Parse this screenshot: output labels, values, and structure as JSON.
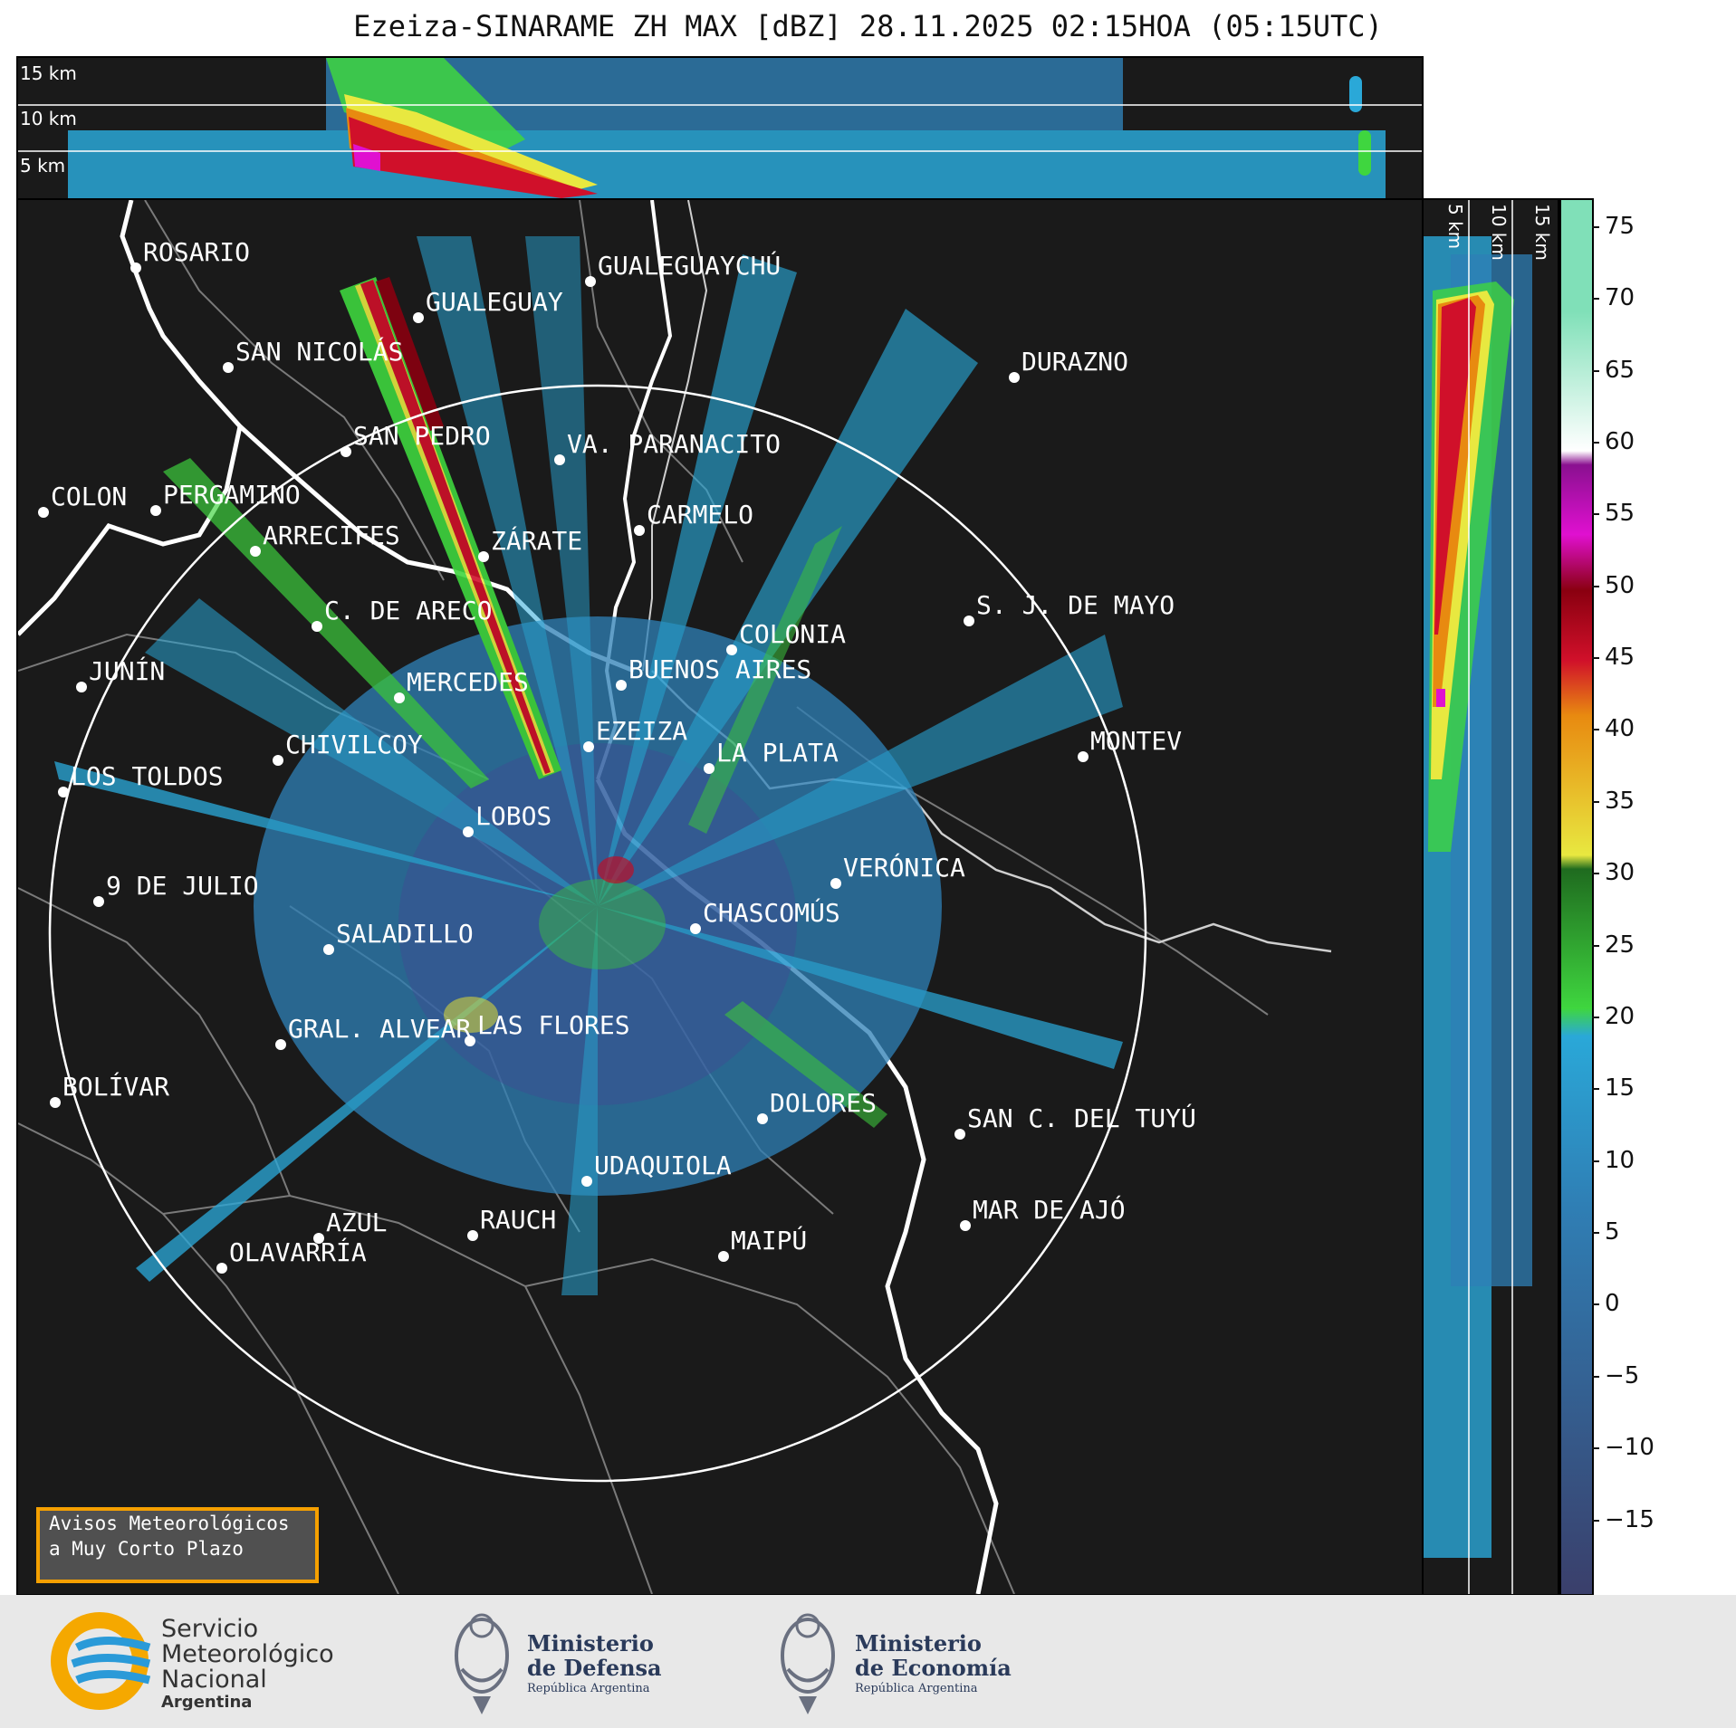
{
  "title": "Ezeiza-SINARAME ZH MAX [dBZ] 28.11.2025 02:15HOA (05:15UTC)",
  "top_panel": {
    "height_labels": [
      "15 km",
      "10 km",
      "5 km"
    ]
  },
  "side_panel": {
    "height_labels": [
      "5 km",
      "10 km",
      "15 km"
    ]
  },
  "colorbar": {
    "ticks": [
      "75",
      "70",
      "65",
      "60",
      "55",
      "50",
      "45",
      "40",
      "35",
      "30",
      "25",
      "20",
      "15",
      "10",
      "5",
      "0",
      "−5",
      "−10",
      "−15"
    ],
    "range_dbz": [
      -20,
      77
    ],
    "colors": {
      "low": "#3a3f6b",
      "blue": "#2f7fb5",
      "light_blue": "#2aa8d8",
      "green": "#3fd63f",
      "dark_green": "#1f6b1f",
      "yellow": "#e8e840",
      "orange": "#e88a10",
      "red": "#d0102a",
      "dark_red": "#8a0010",
      "magenta": "#e010d0",
      "purple": "#8a1090",
      "white": "#ffffff",
      "mint": "#80e0b8"
    }
  },
  "places": [
    {
      "name": "ROSARIO"
    },
    {
      "name": "GUALEGUAYCHÚ"
    },
    {
      "name": "GUALEGUAY"
    },
    {
      "name": "SAN NICOLÁS"
    },
    {
      "name": "DURAZNO"
    },
    {
      "name": "SAN PEDRO"
    },
    {
      "name": "VA. PARANACITO"
    },
    {
      "name": "COLON"
    },
    {
      "name": "PERGAMINO"
    },
    {
      "name": "CARMELO"
    },
    {
      "name": "ARRECIFES"
    },
    {
      "name": "ZÁRATE"
    },
    {
      "name": "S. J. DE MAYO"
    },
    {
      "name": "C. DE ARECO"
    },
    {
      "name": "COLONIA"
    },
    {
      "name": "JUNÍN"
    },
    {
      "name": "BUENOS AIRES"
    },
    {
      "name": "MERCEDES"
    },
    {
      "name": "MONTEV"
    },
    {
      "name": "EZEIZA"
    },
    {
      "name": "CHIVILCOY"
    },
    {
      "name": "LA PLATA"
    },
    {
      "name": "LOS TOLDOS"
    },
    {
      "name": "LOBOS"
    },
    {
      "name": "VERÓNICA"
    },
    {
      "name": "9 DE JULIO"
    },
    {
      "name": "CHASCOMÚS"
    },
    {
      "name": "SALADILLO"
    },
    {
      "name": "GRAL. ALVEAR"
    },
    {
      "name": "LAS FLORES"
    },
    {
      "name": "BOLÍVAR"
    },
    {
      "name": "DOLORES"
    },
    {
      "name": "SAN C. DEL TUYÚ"
    },
    {
      "name": "UDAQUIOLA"
    },
    {
      "name": "MAR DE AJÓ"
    },
    {
      "name": "AZUL"
    },
    {
      "name": "RAUCH"
    },
    {
      "name": "OLAVARRÍA"
    },
    {
      "name": "MAIPÚ"
    }
  ],
  "alert_box": {
    "line1": "Avisos Meteorológicos",
    "line2": "a Muy Corto Plazo"
  },
  "footer": {
    "smn": {
      "line1": "Servicio",
      "line2": "Meteorológico",
      "line3": "Nacional",
      "line4": "Argentina"
    },
    "defensa": {
      "line1": "Ministerio",
      "line2": "de Defensa",
      "sub": "República Argentina"
    },
    "economia": {
      "line1": "Ministerio",
      "line2": "de Economía",
      "sub": "República Argentina"
    }
  }
}
